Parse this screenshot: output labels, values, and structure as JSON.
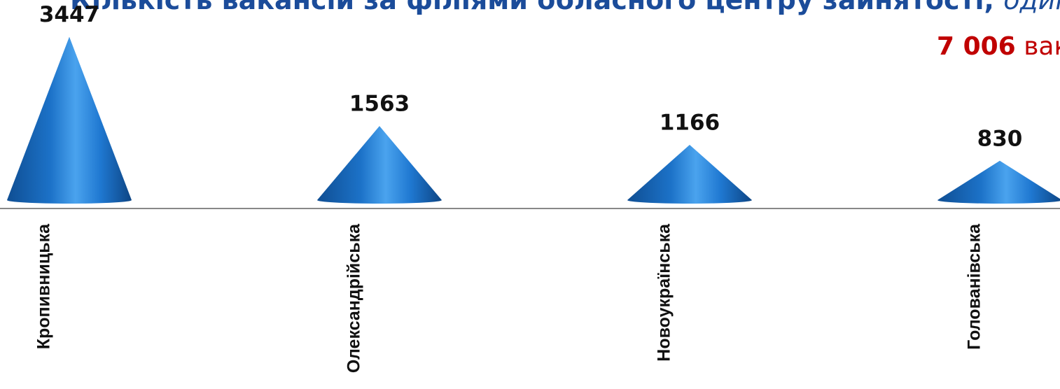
{
  "chart_data": {
    "type": "bar",
    "title": "Кількість вакансій за філіями обласного центру зайнятості,",
    "title_unit": "одиниць",
    "annotation_value": "7 006",
    "annotation_text": "вакансій",
    "categories": [
      "Кропивницька",
      "Олександрійська",
      "Новоукраїнська",
      "Голованівська"
    ],
    "values": [
      3447,
      1563,
      1166,
      830
    ],
    "color": "#1f78d1",
    "ylim": [
      0,
      3500
    ]
  }
}
